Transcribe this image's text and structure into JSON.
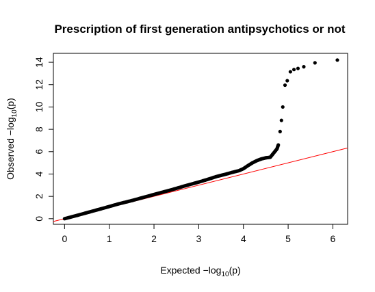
{
  "chart_data": {
    "type": "scatter",
    "title": "Prescription of first generation antipsychotics or not",
    "xlabel": "Expected  −log10(p)",
    "ylabel": "Observed  −log10(p)",
    "xlabel_parts": {
      "prefix": "Expected  −log",
      "sub": "10",
      "suffix": "(p)"
    },
    "ylabel_parts": {
      "prefix": "Observed  −log",
      "sub": "10",
      "suffix": "(p)"
    },
    "xlim": [
      -0.25,
      6.33
    ],
    "ylim": [
      -0.5,
      14.8
    ],
    "x_ticks": [
      0,
      1,
      2,
      3,
      4,
      5,
      6
    ],
    "y_ticks": [
      0,
      2,
      4,
      6,
      8,
      10,
      12,
      14
    ],
    "grid": false,
    "reference_line": {
      "slope": 1,
      "intercept": 0,
      "color": "#ff0000"
    },
    "point_color": "#000000",
    "series": [
      {
        "values": [
          [
            0.0,
            0.0
          ],
          [
            0.3,
            0.32
          ],
          [
            0.6,
            0.65
          ],
          [
            0.9,
            0.98
          ],
          [
            1.2,
            1.32
          ],
          [
            1.5,
            1.62
          ],
          [
            1.8,
            1.95
          ],
          [
            2.1,
            2.28
          ],
          [
            2.4,
            2.6
          ],
          [
            2.7,
            2.95
          ],
          [
            3.0,
            3.28
          ],
          [
            3.2,
            3.52
          ],
          [
            3.4,
            3.78
          ],
          [
            3.6,
            3.98
          ],
          [
            3.75,
            4.15
          ],
          [
            3.9,
            4.3
          ],
          [
            4.0,
            4.48
          ],
          [
            4.1,
            4.75
          ],
          [
            4.2,
            5.0
          ],
          [
            4.3,
            5.2
          ],
          [
            4.4,
            5.35
          ],
          [
            4.5,
            5.45
          ],
          [
            4.6,
            5.5
          ],
          [
            4.65,
            5.75
          ],
          [
            4.7,
            6.0
          ],
          [
            4.75,
            6.25
          ],
          [
            4.78,
            6.6
          ],
          [
            4.82,
            7.8
          ],
          [
            4.85,
            8.8
          ],
          [
            4.88,
            10.0
          ],
          [
            4.93,
            11.95
          ],
          [
            4.98,
            12.35
          ],
          [
            5.05,
            13.15
          ],
          [
            5.13,
            13.35
          ],
          [
            5.22,
            13.45
          ],
          [
            5.35,
            13.6
          ],
          [
            5.6,
            13.95
          ],
          [
            6.1,
            14.2
          ]
        ]
      }
    ]
  }
}
